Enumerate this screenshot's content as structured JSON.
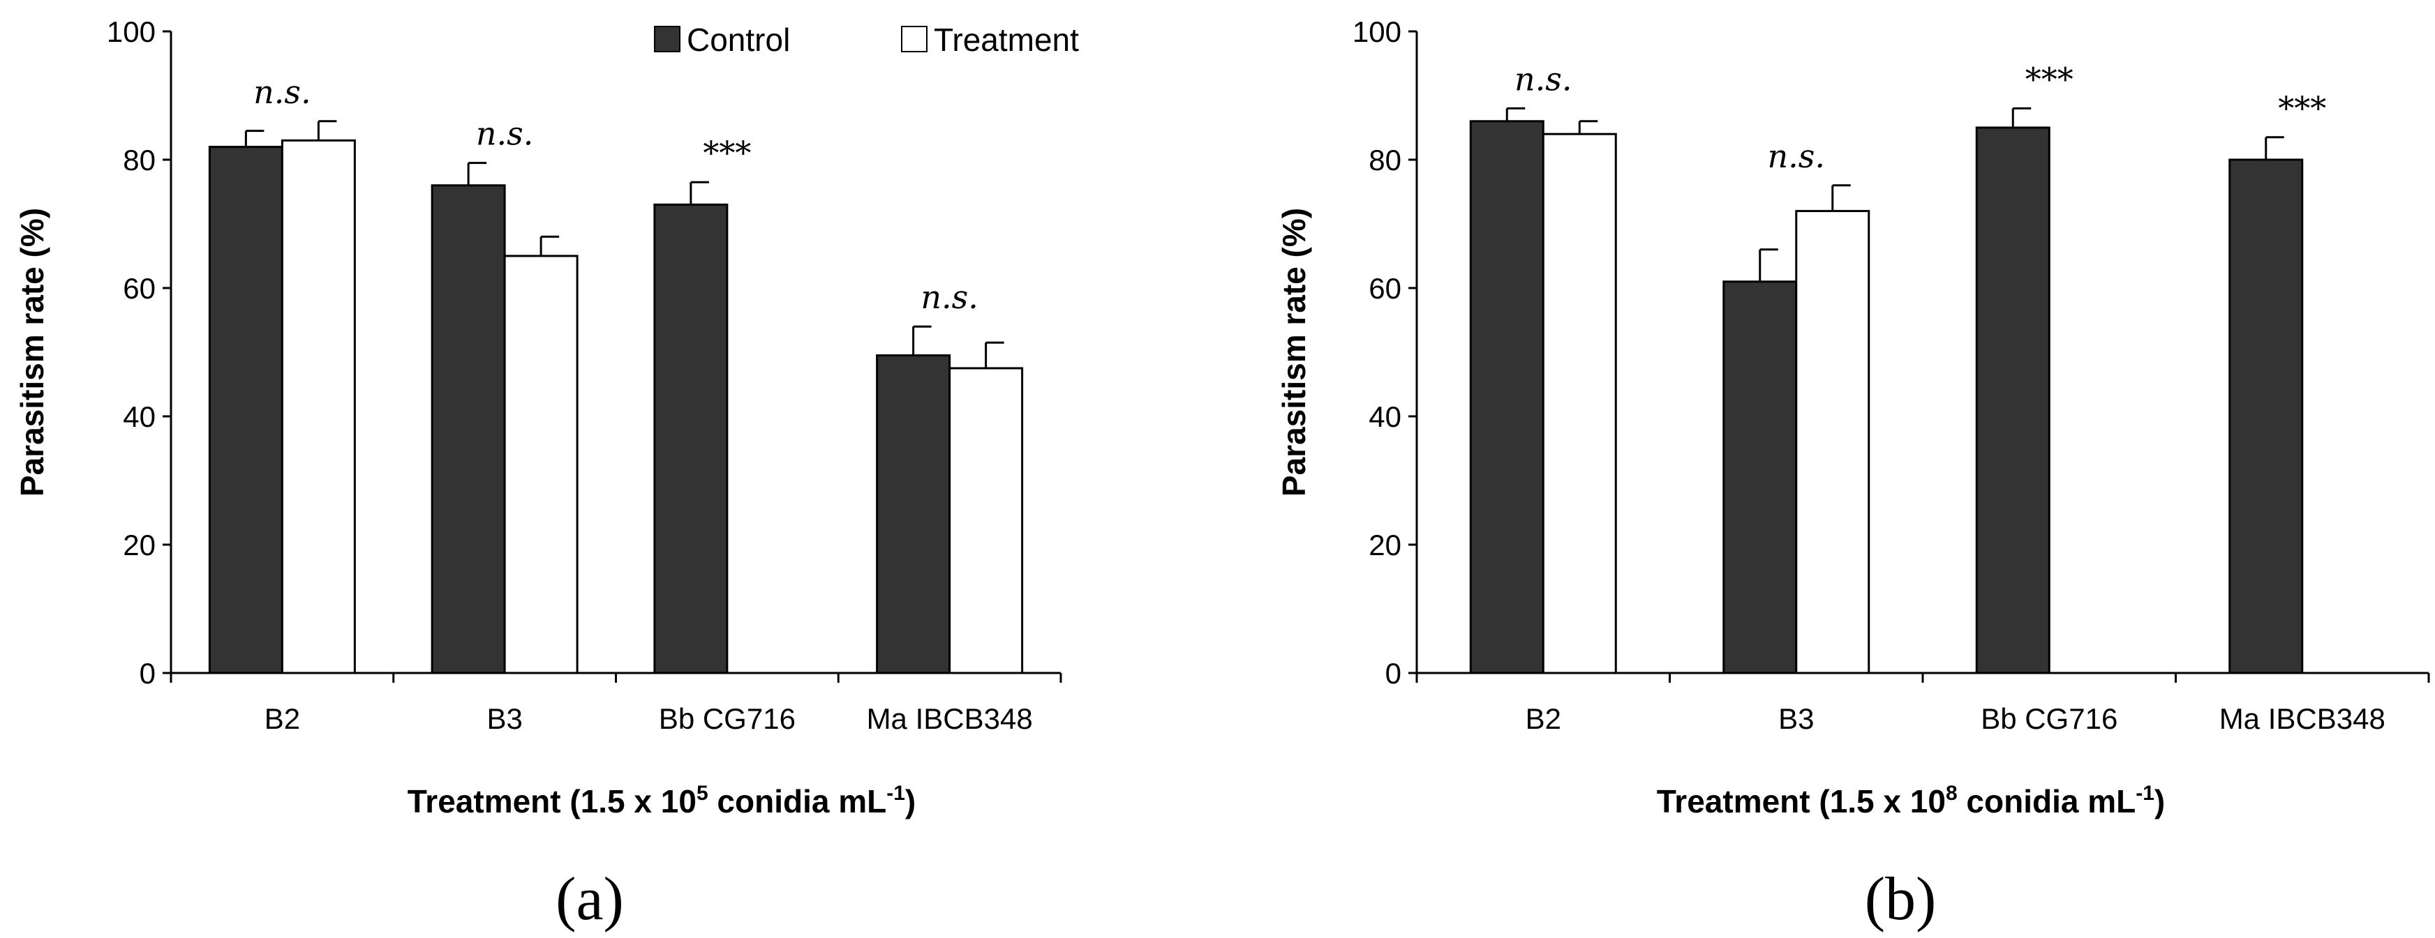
{
  "legend": {
    "placement": "top-center",
    "entries": [
      {
        "name": "Control",
        "color": "#333333"
      },
      {
        "name": "Treatment",
        "color": "#ffffff"
      }
    ]
  },
  "chart_data": [
    {
      "type": "bar",
      "panel_label": "(a)",
      "categories": [
        "B2",
        "B3",
        "Bb CG716",
        "Ma IBCB348"
      ],
      "series": [
        {
          "name": "Control",
          "values": [
            82,
            76,
            73,
            49.5
          ],
          "errors": [
            2.5,
            3.5,
            3.5,
            4.5
          ]
        },
        {
          "name": "Treatment",
          "values": [
            83,
            65,
            null,
            47.5
          ],
          "errors": [
            3,
            3,
            null,
            4
          ]
        }
      ],
      "significance": [
        "n.s.",
        "n.s.",
        "***",
        "n.s."
      ],
      "ylabel": "Parasitism rate (%)",
      "xlabel": {
        "prefix": "Treatment (1.5 x 10",
        "exponent": "5",
        "middle": " conidia mL",
        "unit_exponent": "-1",
        "suffix": ")"
      },
      "ylim": [
        0,
        100
      ],
      "yticks": [
        0,
        20,
        40,
        60,
        80,
        100
      ],
      "grid": false
    },
    {
      "type": "bar",
      "panel_label": "(b)",
      "categories": [
        "B2",
        "B3",
        "Bb CG716",
        "Ma IBCB348"
      ],
      "series": [
        {
          "name": "Control",
          "values": [
            86,
            61,
            85,
            80
          ],
          "errors": [
            2,
            5,
            3,
            3.5
          ]
        },
        {
          "name": "Treatment",
          "values": [
            84,
            72,
            null,
            null
          ],
          "errors": [
            2,
            4,
            null,
            null
          ]
        }
      ],
      "significance": [
        "n.s.",
        "n.s.",
        "***",
        "***"
      ],
      "ylabel": "Parasitism rate (%)",
      "xlabel": {
        "prefix": "Treatment (1.5 x 10",
        "exponent": "8",
        "middle": " conidia mL",
        "unit_exponent": "-1",
        "suffix": ")"
      },
      "ylim": [
        0,
        100
      ],
      "yticks": [
        0,
        20,
        40,
        60,
        80,
        100
      ],
      "grid": false
    }
  ]
}
